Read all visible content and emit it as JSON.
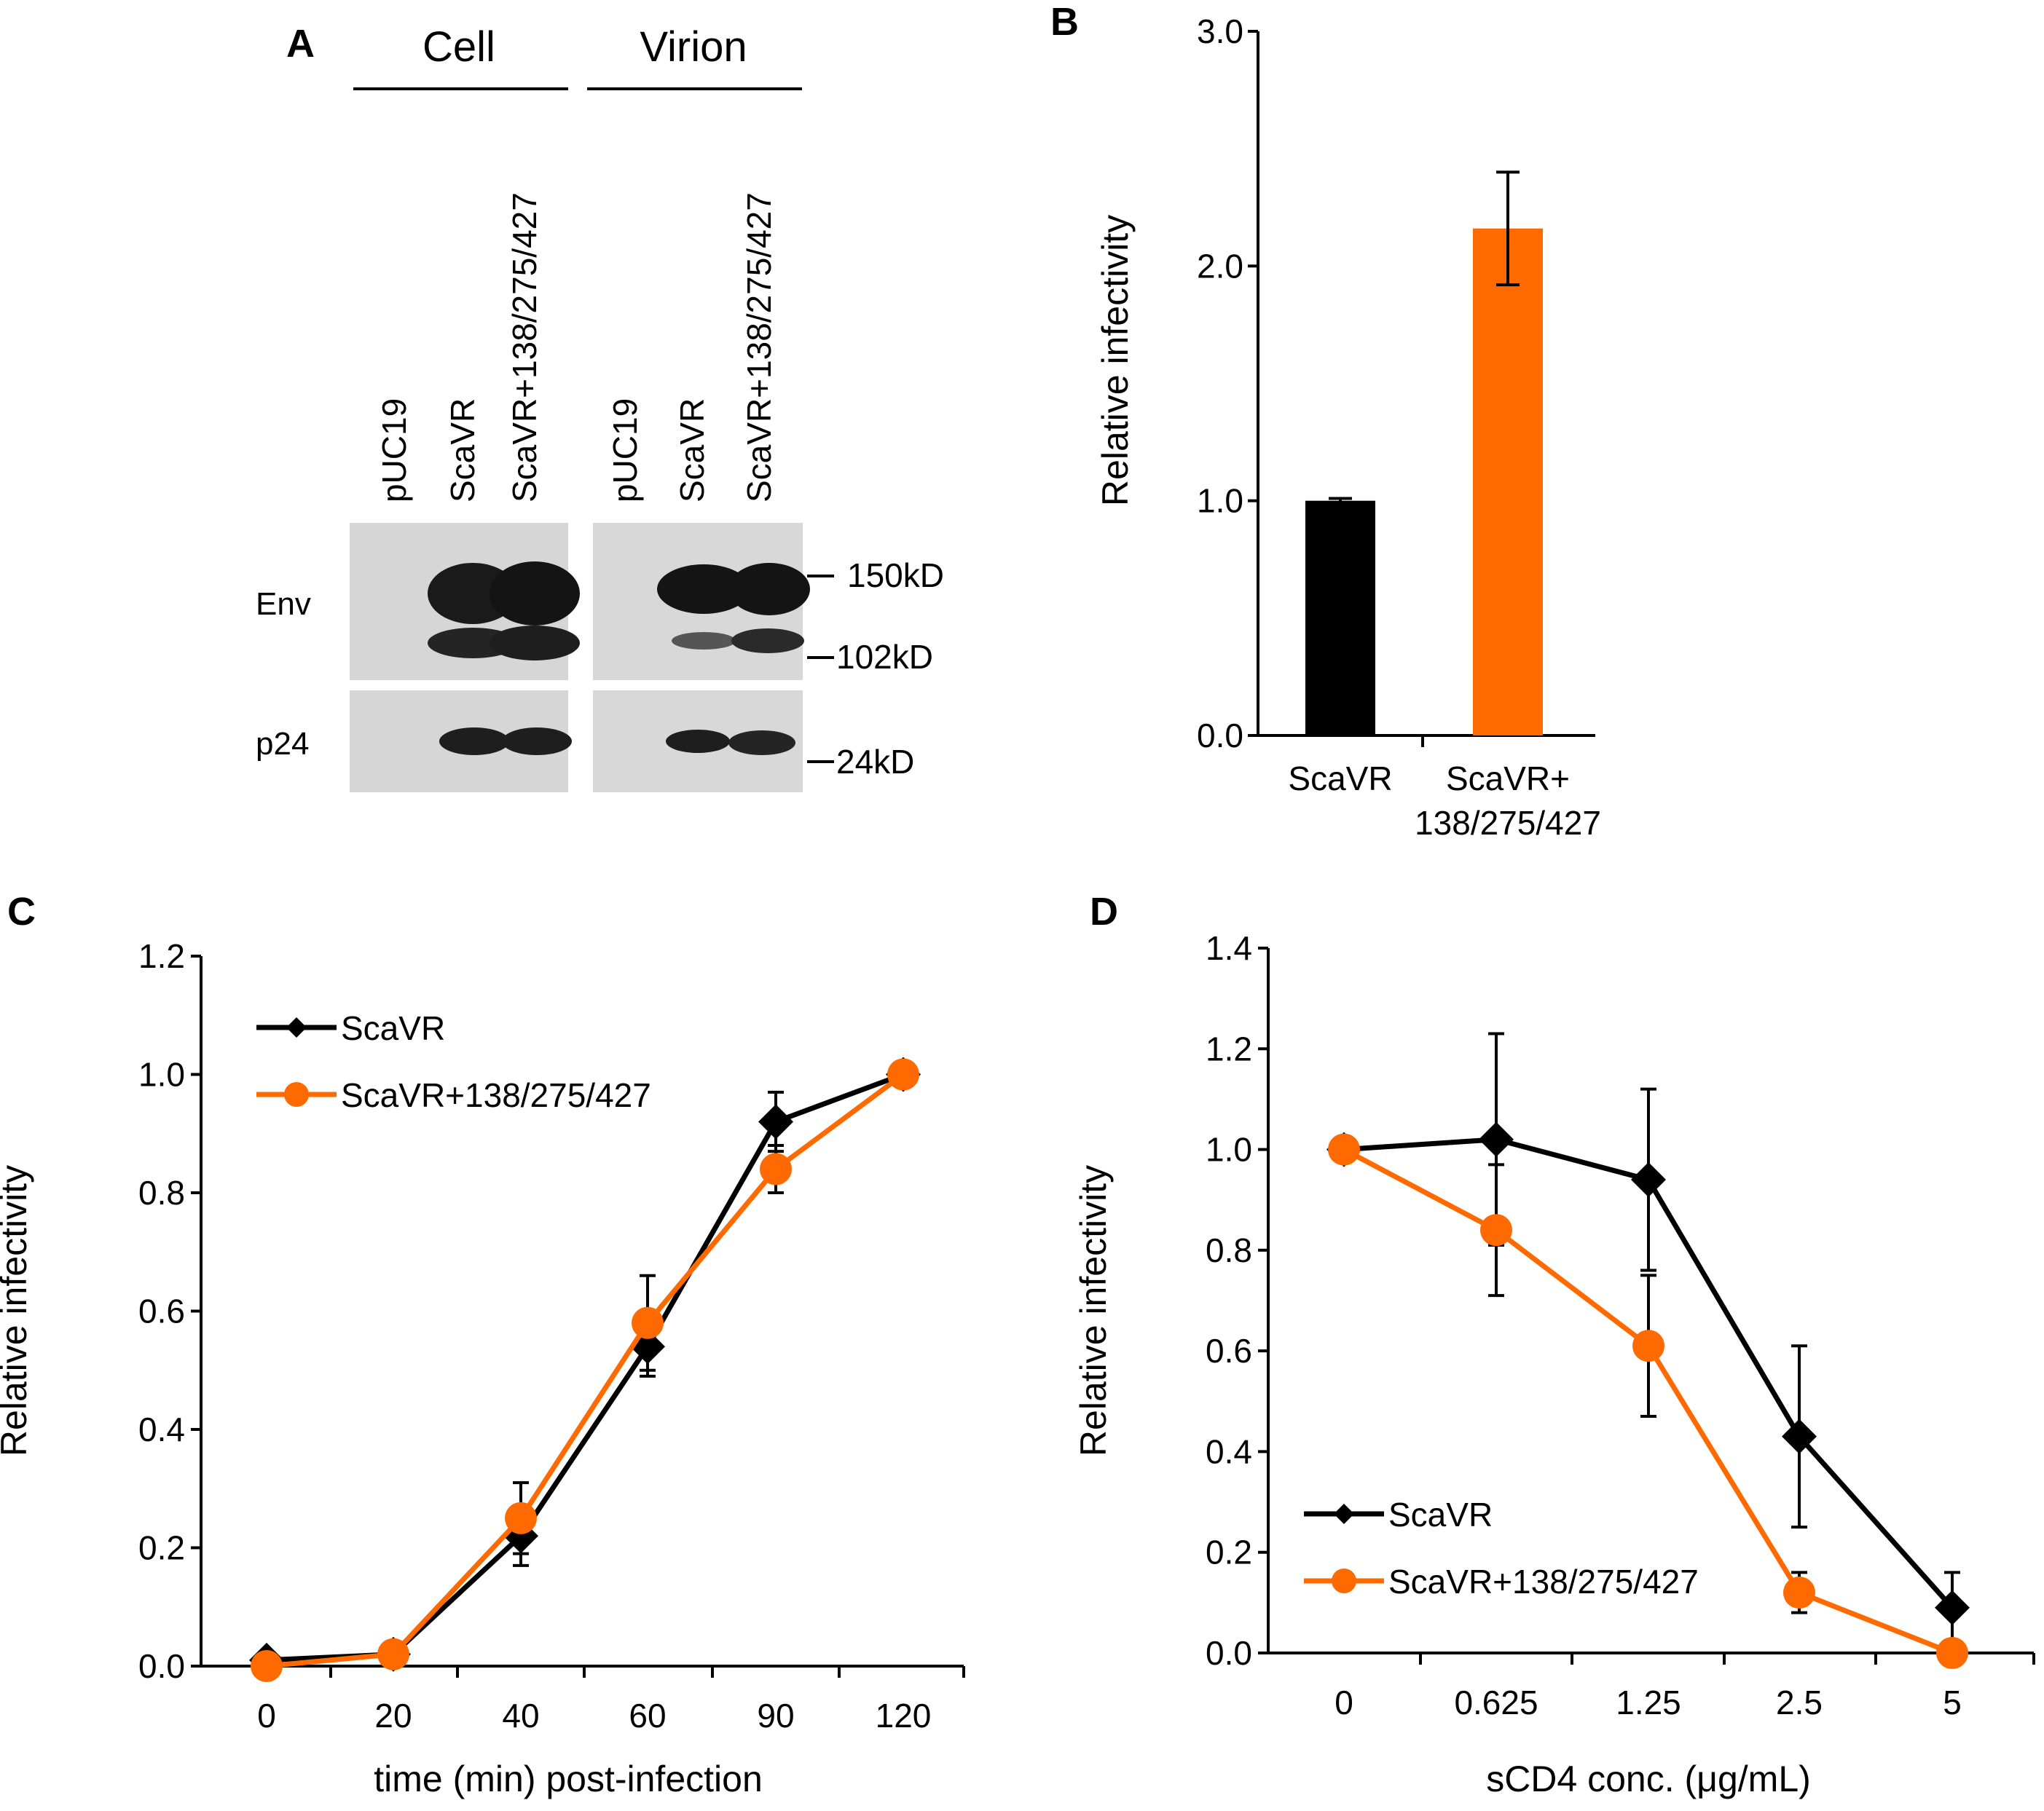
{
  "colors": {
    "black_series": "#000000",
    "orange_series": "#ff6a00",
    "blot_bg": "#d4d4d4"
  },
  "panelA": {
    "letter": "A",
    "groups": [
      "Cell",
      "Virion"
    ],
    "lanes": [
      "pUC19",
      "ScaVR",
      "ScaVR+138/275/427",
      "pUC19",
      "ScaVR",
      "ScaVR+138/275/427"
    ],
    "rows": [
      "Env",
      "p24"
    ],
    "markers": [
      "150kD",
      "102kD",
      "24kD"
    ]
  },
  "chart_data": [
    {
      "panel": "B",
      "type": "bar",
      "categories": [
        [
          "ScaVR"
        ],
        [
          "ScaVR+",
          "138/275/427"
        ]
      ],
      "values": [
        1.0,
        2.16
      ],
      "errors": [
        0.01,
        0.24
      ],
      "colors": [
        "#000000",
        "#ff6a00"
      ],
      "ylabel": "Relative infectivity",
      "ylim": [
        0,
        3.0
      ],
      "yticks": [
        "0.0",
        "1.0",
        "2.0",
        "3.0"
      ]
    },
    {
      "panel": "C",
      "type": "line",
      "categories": [
        "0",
        "20",
        "40",
        "60",
        "90",
        "120"
      ],
      "series": [
        {
          "name": "ScaVR",
          "values": [
            0.01,
            0.02,
            0.22,
            0.54,
            0.92,
            1.0
          ],
          "errors": [
            0.0,
            0.0,
            0.05,
            0.05,
            0.05,
            0.0
          ],
          "color": "#000000",
          "marker": "diamond"
        },
        {
          "name": "ScaVR+138/275/427",
          "values": [
            0.0,
            0.02,
            0.25,
            0.58,
            0.84,
            1.0
          ],
          "errors": [
            0.0,
            0.0,
            0.06,
            0.08,
            0.04,
            0.0
          ],
          "color": "#ff6a00",
          "marker": "circle"
        }
      ],
      "xlabel": "time (min) post-infection",
      "ylabel": "Relative infectivity",
      "ylim": [
        0,
        1.2
      ],
      "yticks": [
        "0.0",
        "0.2",
        "0.4",
        "0.6",
        "0.8",
        "1.0",
        "1.2"
      ],
      "legend": "top-left"
    },
    {
      "panel": "D",
      "type": "line",
      "categories": [
        "0",
        "0.625",
        "1.25",
        "2.5",
        "5"
      ],
      "series": [
        {
          "name": "ScaVR",
          "values": [
            1.0,
            1.02,
            0.94,
            0.43,
            0.09
          ],
          "errors": [
            0.0,
            0.21,
            0.18,
            0.18,
            0.07
          ],
          "color": "#000000",
          "marker": "diamond"
        },
        {
          "name": "ScaVR+138/275/427",
          "values": [
            1.0,
            0.84,
            0.61,
            0.12,
            0.0
          ],
          "errors": [
            0.0,
            0.13,
            0.14,
            0.04,
            0.0
          ],
          "color": "#ff6a00",
          "marker": "circle"
        }
      ],
      "xlabel": "sCD4 conc. (μg/mL)",
      "ylabel": "Relative infectivity",
      "ylim": [
        0,
        1.4
      ],
      "yticks": [
        "0.0",
        "0.2",
        "0.4",
        "0.6",
        "0.8",
        "1.0",
        "1.2",
        "1.4"
      ],
      "legend": "bottom-left"
    }
  ]
}
